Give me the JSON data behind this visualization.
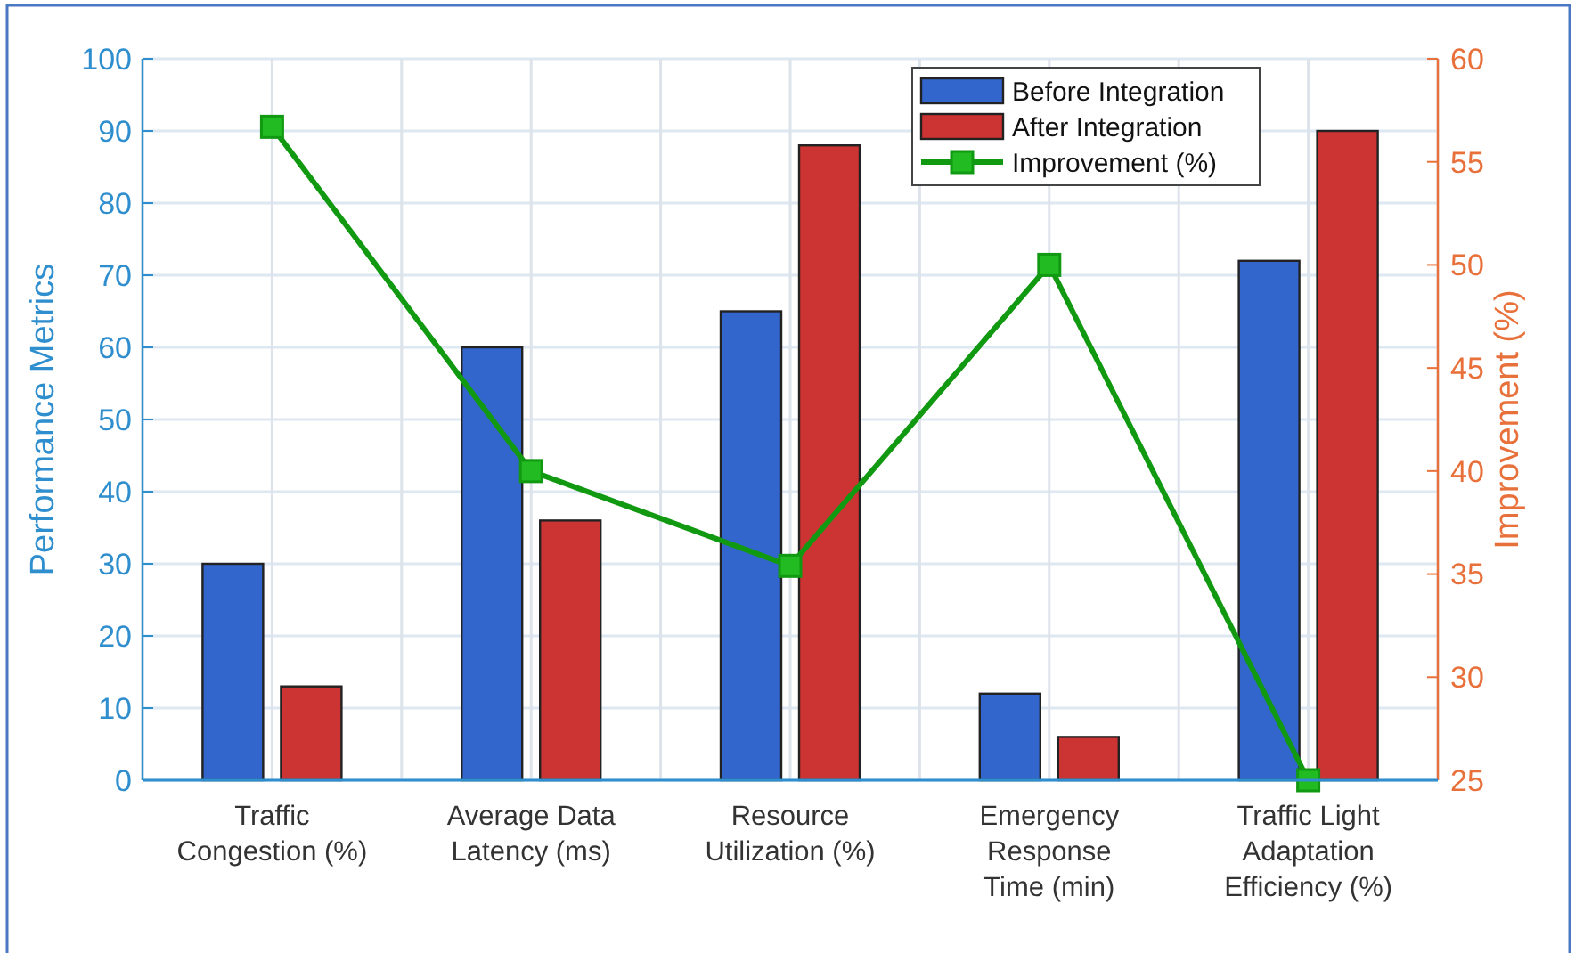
{
  "chart_data": {
    "type": "bar",
    "categories": [
      "Traffic Congestion (%)",
      "Average Data Latency (ms)",
      "Resource Utilization (%)",
      "Emergency Response Time (min)",
      "Traffic Light Adaptation Efficiency (%)"
    ],
    "series": [
      {
        "name": "Before Integration",
        "color": "#3366cc",
        "values": [
          30,
          60,
          65,
          12,
          72
        ]
      },
      {
        "name": "After Integration",
        "color": "#cc3333",
        "values": [
          13,
          36,
          88,
          6,
          90
        ]
      },
      {
        "name": "Improvement (%)",
        "type": "line",
        "axis": "y2",
        "color": "#119911",
        "marker": "square",
        "values": [
          56.7,
          40,
          35.4,
          50,
          25
        ]
      }
    ],
    "ylabel": "Performance Metrics",
    "y2label": "Improvement (%)",
    "ylim": [
      0,
      100
    ],
    "yticks": [
      0,
      10,
      20,
      30,
      40,
      50,
      60,
      70,
      80,
      90,
      100
    ],
    "y2lim": [
      25,
      60
    ],
    "y2ticks": [
      25,
      30,
      35,
      40,
      45,
      50,
      55,
      60
    ],
    "grid": true,
    "legend": "top right"
  }
}
